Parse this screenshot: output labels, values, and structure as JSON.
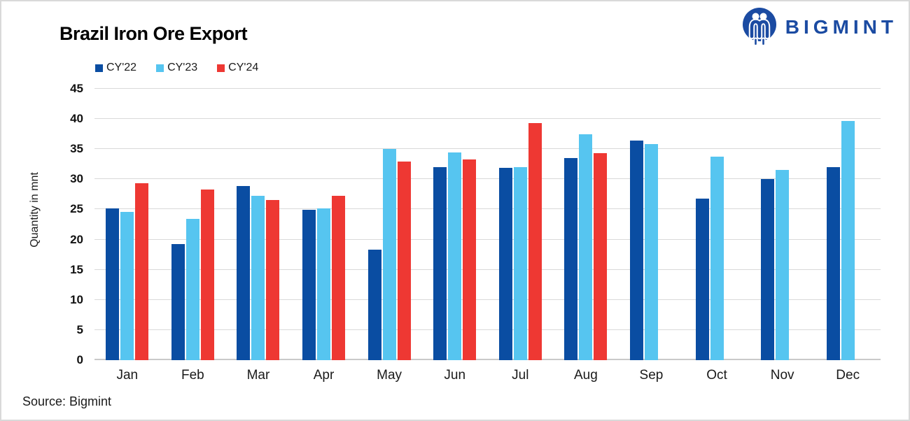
{
  "header": {
    "title": "Brazil Iron Ore Export"
  },
  "brand": {
    "name": "BIGMINT",
    "color": "#1B4BA2",
    "icon": "bigmint-m-people-icon"
  },
  "footer": {
    "source": "Source: Bigmint"
  },
  "colors": {
    "cy22": "#0A4DA2",
    "cy23": "#56C5F0",
    "cy24": "#EE3833",
    "gridline": "#D9D9D9"
  },
  "chart_data": {
    "type": "bar",
    "title": "Brazil Iron Ore Export",
    "xlabel": "",
    "ylabel": "Quantity in mnt",
    "ylim": [
      0,
      45
    ],
    "ytick_step": 5,
    "grid": true,
    "legend_position": "top-left",
    "categories": [
      "Jan",
      "Feb",
      "Mar",
      "Apr",
      "May",
      "Jun",
      "Jul",
      "Aug",
      "Sep",
      "Oct",
      "Nov",
      "Dec"
    ],
    "series": [
      {
        "name": "CY'22",
        "color": "#0A4DA2",
        "values": [
          25.2,
          19.2,
          28.9,
          24.9,
          18.3,
          32.0,
          31.9,
          33.5,
          36.4,
          26.8,
          30.0,
          32.0
        ]
      },
      {
        "name": "CY'23",
        "color": "#56C5F0",
        "values": [
          24.6,
          23.4,
          27.2,
          25.2,
          35.0,
          34.4,
          32.0,
          37.5,
          35.8,
          33.8,
          31.6,
          39.7
        ]
      },
      {
        "name": "CY'24",
        "color": "#EE3833",
        "values": [
          29.4,
          28.3,
          26.6,
          27.2,
          32.9,
          33.3,
          39.3,
          34.3,
          null,
          null,
          null,
          null
        ]
      }
    ]
  }
}
